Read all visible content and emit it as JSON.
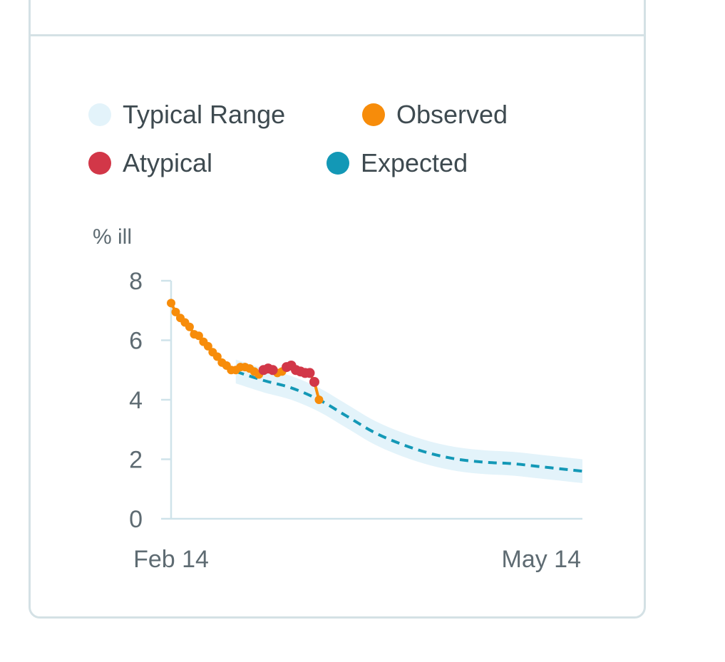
{
  "legend": {
    "typical_range": {
      "label": "Typical Range",
      "color": "#e3f3fa"
    },
    "observed": {
      "label": "Observed",
      "color": "#f78c0a"
    },
    "atypical": {
      "label": "Atypical",
      "color": "#d23748"
    },
    "expected": {
      "label": "Expected",
      "color": "#1398b6"
    }
  },
  "chart_data": {
    "type": "line",
    "ylabel": "% ill",
    "ylim": [
      0,
      8
    ],
    "yticks": [
      0,
      2,
      4,
      6,
      8
    ],
    "x_start": "Feb 14",
    "x_end": "May 14",
    "x_unit": "days after Feb 14",
    "xlim": [
      0,
      89
    ],
    "xticks": [
      {
        "x": 0,
        "label": "Feb 14"
      },
      {
        "x": 89,
        "label": "May 14"
      }
    ],
    "series": [
      {
        "name": "Observed",
        "color": "#f78c0a",
        "x": [
          0,
          1,
          2,
          3,
          4,
          5,
          6,
          7,
          8,
          9,
          10,
          11,
          12,
          13,
          14,
          15,
          16,
          17,
          18,
          19,
          20,
          21,
          22,
          23,
          24,
          25,
          26,
          27,
          28,
          29,
          30,
          31,
          32
        ],
        "y": [
          7.25,
          6.95,
          6.75,
          6.6,
          6.45,
          6.2,
          6.15,
          5.95,
          5.8,
          5.6,
          5.45,
          5.25,
          5.15,
          5.0,
          5.0,
          5.1,
          5.1,
          5.05,
          4.95,
          4.85,
          5.0,
          5.05,
          5.0,
          4.9,
          4.95,
          5.1,
          5.15,
          5.0,
          4.95,
          4.9,
          4.9,
          4.6,
          4.0
        ]
      },
      {
        "name": "Atypical",
        "color": "#d23748",
        "x": [
          20,
          21,
          22,
          25,
          26,
          27,
          28,
          29,
          30,
          31
        ],
        "y": [
          5.0,
          5.05,
          5.0,
          5.1,
          5.15,
          5.0,
          4.95,
          4.9,
          4.9,
          4.6
        ]
      },
      {
        "name": "Expected",
        "color": "#1398b6",
        "x": [
          14,
          20,
          26,
          32,
          38,
          44,
          50,
          56,
          62,
          68,
          74,
          80,
          86,
          89
        ],
        "y": [
          4.95,
          4.65,
          4.4,
          4.0,
          3.45,
          2.9,
          2.5,
          2.2,
          2.0,
          1.9,
          1.85,
          1.75,
          1.65,
          1.6
        ]
      }
    ],
    "band": {
      "name": "Typical Range",
      "color": "#e3f3fa",
      "x": [
        14,
        20,
        26,
        32,
        38,
        44,
        50,
        56,
        62,
        68,
        74,
        80,
        86,
        89
      ],
      "lower": [
        4.55,
        4.25,
        4.0,
        3.6,
        3.05,
        2.5,
        2.1,
        1.8,
        1.6,
        1.5,
        1.45,
        1.35,
        1.25,
        1.2
      ],
      "upper": [
        5.35,
        5.05,
        4.8,
        4.4,
        3.85,
        3.3,
        2.9,
        2.6,
        2.4,
        2.3,
        2.25,
        2.15,
        2.05,
        2.0
      ]
    }
  }
}
